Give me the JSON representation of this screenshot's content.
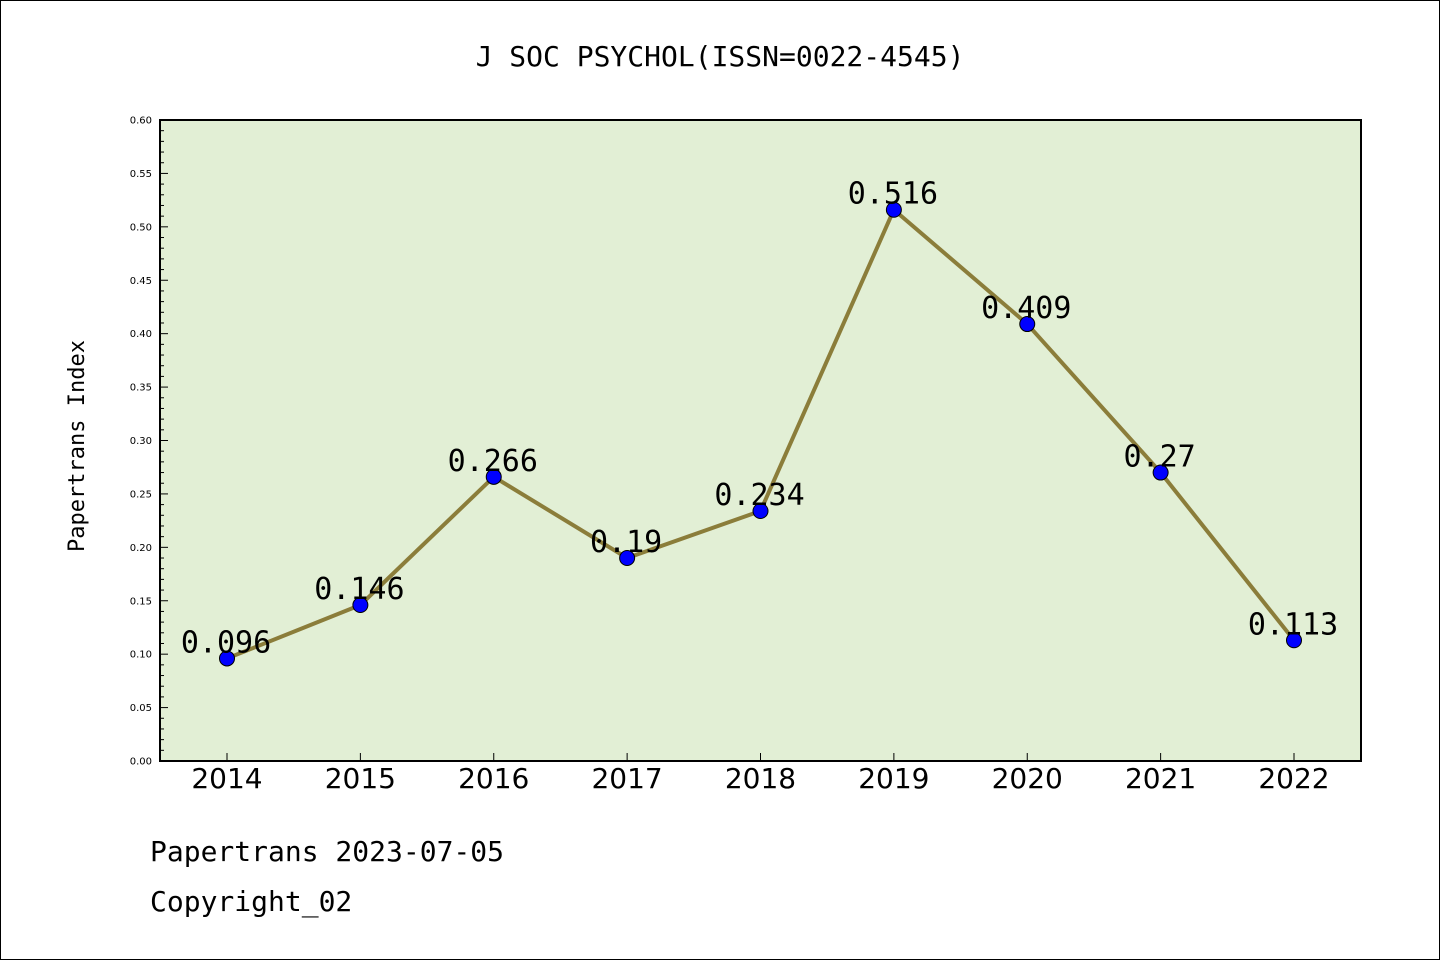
{
  "chart_data": {
    "type": "line",
    "title": "J SOC PSYCHOL(ISSN=0022-4545)",
    "xlabel": "",
    "ylabel": "Papertrans Index",
    "x": [
      "2014",
      "2015",
      "2016",
      "2017",
      "2018",
      "2019",
      "2020",
      "2021",
      "2022"
    ],
    "series": [
      {
        "values": [
          0.096,
          0.146,
          0.266,
          0.19,
          0.234,
          0.516,
          0.409,
          0.27,
          0.113
        ]
      }
    ],
    "data_labels": [
      "0.096",
      "0.146",
      "0.266",
      "0.19",
      "0.234",
      "0.516",
      "0.409",
      "0.27",
      "0.113"
    ],
    "ylim": [
      0,
      0.6
    ],
    "yticks": [
      "0.00",
      "0.05",
      "0.10",
      "0.15",
      "0.20",
      "0.25",
      "0.30",
      "0.35",
      "0.40",
      "0.45",
      "0.50",
      "0.55",
      "0.60"
    ],
    "grid": false,
    "colors": {
      "plot_bg": "#e2efd5",
      "line": "#8b7d3a",
      "marker": "#0000ff"
    }
  },
  "footer": {
    "line1": "Papertrans 2023-07-05",
    "line2": "Copyright_02"
  }
}
